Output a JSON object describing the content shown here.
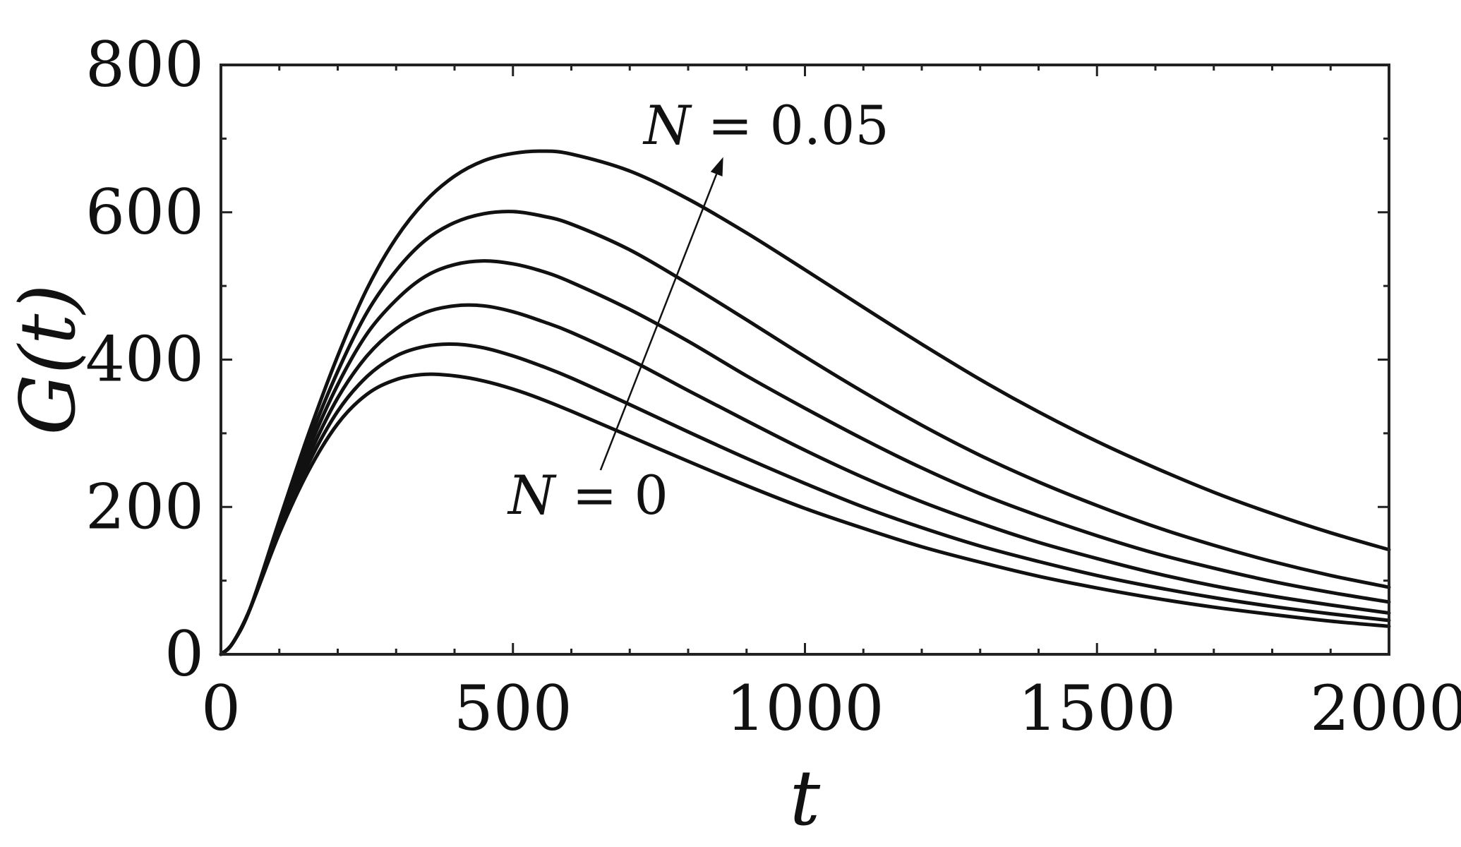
{
  "chart_data": {
    "type": "line",
    "xlabel": "t",
    "ylabel": "G(t)",
    "xlim": [
      0,
      2000
    ],
    "ylim": [
      0,
      800
    ],
    "xticks": [
      "0",
      "500",
      "1000",
      "1500",
      "2000"
    ],
    "yticks": [
      "0",
      "200",
      "400",
      "600",
      "800"
    ],
    "xminor_step": 100,
    "yminor_step": 100,
    "grid": false,
    "annotations": [
      {
        "name_prefix": "N = ",
        "value": "0.05",
        "position": "upper"
      },
      {
        "name_prefix": "N = ",
        "value": "0",
        "position": "lower"
      }
    ],
    "x": [
      0,
      20,
      50,
      100,
      150,
      200,
      250,
      300,
      350,
      400,
      450,
      500,
      550,
      600,
      700,
      800,
      900,
      1000,
      1100,
      1200,
      1300,
      1400,
      1500,
      1600,
      1700,
      1800,
      1900,
      2000
    ],
    "series": [
      {
        "values": [
          0,
          15,
          62,
          164,
          249,
          313,
          353,
          373,
          380,
          378,
          371,
          360,
          346,
          330,
          296,
          262,
          229,
          198,
          171,
          146,
          125,
          106,
          90,
          76,
          64,
          54,
          45,
          38
        ]
      },
      {
        "values": [
          0,
          15,
          62,
          168,
          259,
          330,
          377,
          405,
          418,
          421,
          416,
          405,
          391,
          375,
          339,
          302,
          266,
          232,
          200,
          172,
          147,
          126,
          107,
          91,
          77,
          65,
          55,
          46
        ]
      },
      {
        "values": [
          0,
          15,
          62,
          171,
          268,
          348,
          405,
          442,
          464,
          473,
          473,
          465,
          452,
          437,
          400,
          358,
          317,
          277,
          240,
          207,
          178,
          152,
          130,
          110,
          93,
          79,
          67,
          56
        ]
      },
      {
        "values": [
          0,
          15,
          62,
          175,
          278,
          366,
          435,
          481,
          513,
          529,
          534,
          530,
          520,
          505,
          468,
          425,
          378,
          334,
          292,
          253,
          218,
          188,
          161,
          137,
          117,
          99,
          84,
          71
        ]
      },
      {
        "values": [
          0,
          15,
          62,
          178,
          288,
          384,
          464,
          521,
          562,
          586,
          598,
          601,
          595,
          584,
          549,
          503,
          454,
          404,
          356,
          311,
          270,
          234,
          202,
          173,
          148,
          126,
          107,
          91
        ]
      },
      {
        "values": [
          0,
          15,
          62,
          182,
          299,
          405,
          496,
          565,
          615,
          649,
          670,
          680,
          683,
          679,
          656,
          618,
          572,
          522,
          471,
          421,
          373,
          329,
          289,
          253,
          220,
          191,
          165,
          142
        ]
      }
    ]
  }
}
